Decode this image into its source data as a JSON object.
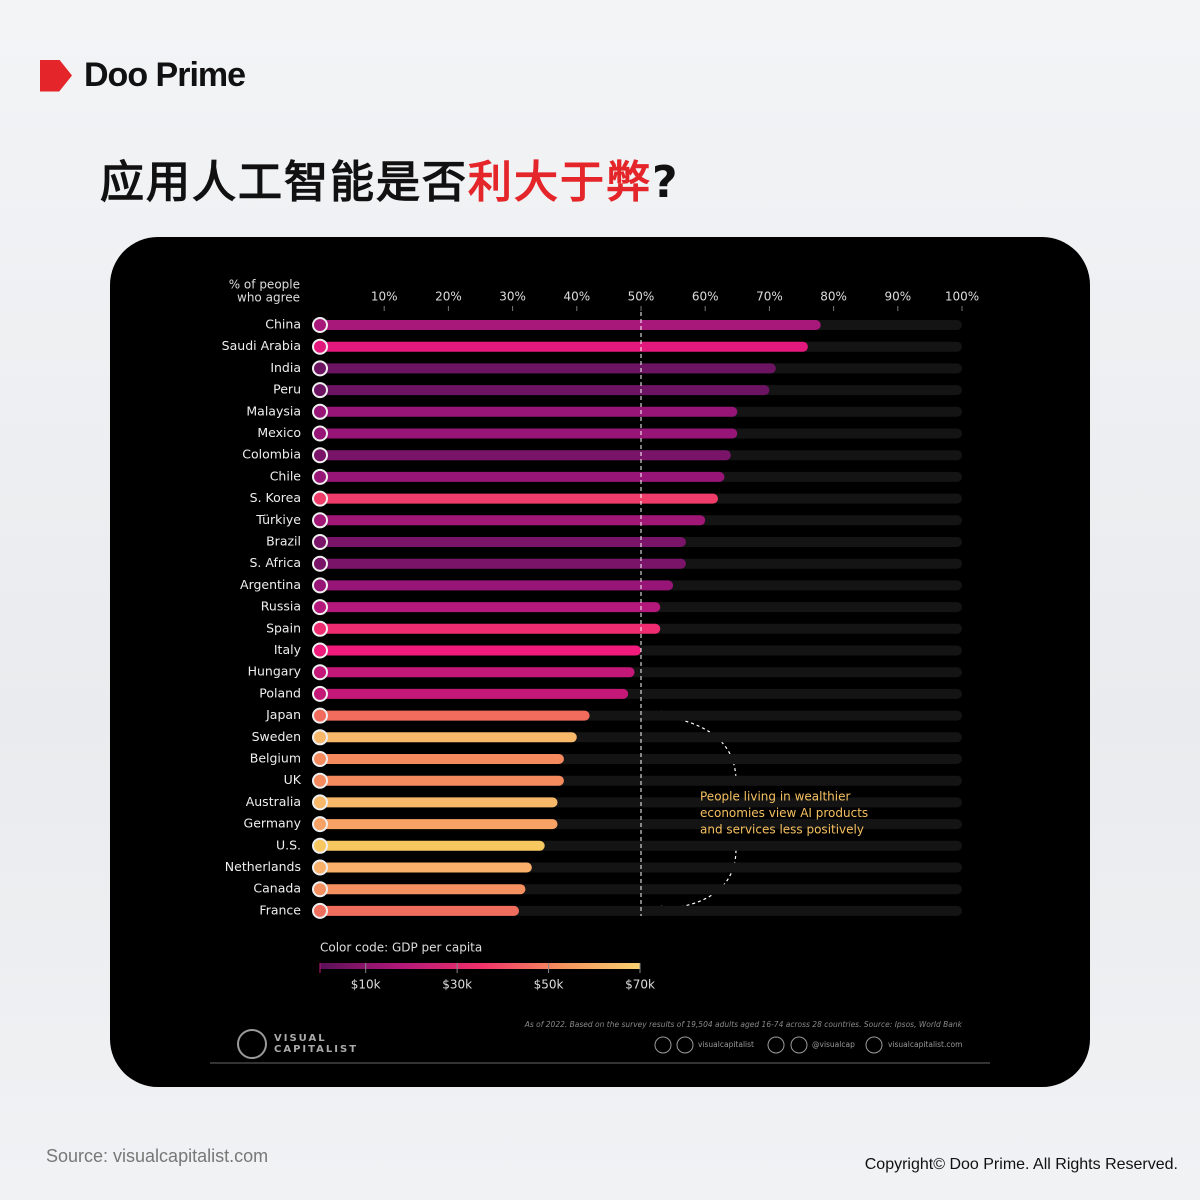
{
  "header": {
    "brand": "Doo Prime",
    "title": [
      "应用人工智能是否",
      "利大于弊",
      "?"
    ]
  },
  "chart_data": {
    "type": "bar",
    "orientation": "horizontal",
    "axis_title": [
      "% of people",
      "who agree"
    ],
    "categories": [
      "China",
      "Saudi Arabia",
      "India",
      "Peru",
      "Malaysia",
      "Mexico",
      "Colombia",
      "Chile",
      "S. Korea",
      "Türkiye",
      "Brazil",
      "S. Africa",
      "Argentina",
      "Russia",
      "Spain",
      "Italy",
      "Hungary",
      "Poland",
      "Japan",
      "Sweden",
      "Belgium",
      "UK",
      "Australia",
      "Germany",
      "U.S.",
      "Netherlands",
      "Canada",
      "France"
    ],
    "values": [
      78,
      76,
      71,
      70,
      65,
      65,
      64,
      63,
      62,
      60,
      57,
      57,
      55,
      53,
      53,
      50,
      49,
      48,
      42,
      40,
      38,
      38,
      37,
      37,
      35,
      33,
      32,
      31
    ],
    "colors": [
      "#a8177a",
      "#e3187c",
      "#6c1462",
      "#6c1462",
      "#961576",
      "#961576",
      "#7a1468",
      "#961576",
      "#f03c68",
      "#a01776",
      "#7a1468",
      "#7a1468",
      "#961576",
      "#b3187a",
      "#f02c70",
      "#f01a7c",
      "#c41878",
      "#c41878",
      "#f26c5e",
      "#f8b86a",
      "#f58a5e",
      "#f58a5e",
      "#f8b86a",
      "#f8a266",
      "#f8c860",
      "#f8b06a",
      "#f59060",
      "#f06e5e"
    ],
    "xlim": [
      0,
      100
    ],
    "xticks": [
      {
        "value": 10,
        "label": "10%"
      },
      {
        "value": 20,
        "label": "20%"
      },
      {
        "value": 30,
        "label": "30%"
      },
      {
        "value": 40,
        "label": "40%"
      },
      {
        "value": 50,
        "label": "50%"
      },
      {
        "value": 60,
        "label": "60%"
      },
      {
        "value": 70,
        "label": "70%"
      },
      {
        "value": 80,
        "label": "80%"
      },
      {
        "value": 90,
        "label": "90%"
      },
      {
        "value": 100,
        "label": "100%"
      }
    ],
    "reference_line": 50,
    "annotation": [
      "People living in wealthier",
      "economies view AI products",
      "and services less positively"
    ],
    "colorbar": {
      "title": "Color code: GDP per capita",
      "lim": [
        0,
        70000
      ],
      "colors": [
        "#5a1058",
        "#b0187a",
        "#f0306a",
        "#f5905e",
        "#f8d070"
      ],
      "ticks": [
        {
          "value": 10000,
          "label": "$10k"
        },
        {
          "value": 30000,
          "label": "$30k"
        },
        {
          "value": 50000,
          "label": "$50k"
        },
        {
          "value": 70000,
          "label": "$70k"
        }
      ]
    },
    "note": "As of 2022. Based on the survey results of 19,504 adults aged 16-74 across 28 countries. Source: Ipsos, World Bank",
    "brand": [
      "VISUAL",
      "CAPITALIST"
    ],
    "socials": [
      "visualcapitalist",
      "@visualcap",
      "visualcapitalist.com"
    ]
  },
  "footer": {
    "source": "Source: visualcapitalist.com",
    "copyright": "Copyright© Doo Prime. All Rights Reserved."
  }
}
